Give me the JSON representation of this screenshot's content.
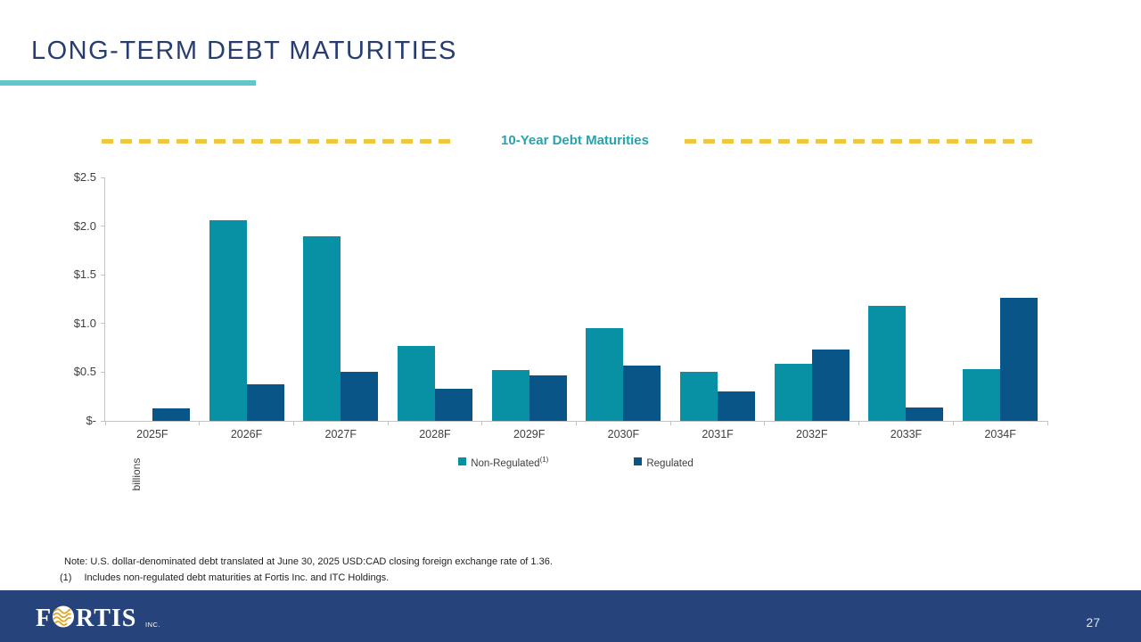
{
  "slide": {
    "title": "LONG-TERM DEBT MATURITIES",
    "page_number": "27"
  },
  "notes": {
    "exchange_rate": "Note: U.S. dollar-denominated debt translated at June 30, 2025 USD:CAD closing foreign exchange rate of 1.36.",
    "footnote_marker": "(1)",
    "footnote_text": "Includes non-regulated debt maturities at Fortis Inc. and ITC Holdings."
  },
  "legend": [
    {
      "label": "Non-Regulated",
      "superscript": "(1)",
      "color": "#0891a5"
    },
    {
      "label": "Regulated",
      "superscript": "",
      "color": "#0a5587"
    }
  ],
  "footer": {
    "logo_text": "FORTIS",
    "logo_suffix": "INC."
  },
  "colors": {
    "accent_teal": "#5fc6cb",
    "dash_gold": "#eec73f",
    "title_navy": "#283d6f",
    "chart_title_teal": "#27a3ad",
    "bar_teal": "#0891a5",
    "bar_navy": "#0a5587",
    "footer_navy": "#26437c"
  },
  "chart_data": {
    "type": "bar",
    "title": "10-Year Debt Maturities",
    "xlabel": "",
    "ylabel": "billions",
    "ylim": [
      0,
      2.5
    ],
    "y_ticks": [
      "$2.5",
      "$2.0",
      "$1.5",
      "$1.0",
      "$0.5",
      "$-"
    ],
    "grid": false,
    "legend_position": "bottom",
    "categories": [
      "2025F",
      "2026F",
      "2027F",
      "2028F",
      "2029F",
      "2030F",
      "2031F",
      "2032F",
      "2033F",
      "2034F"
    ],
    "series": [
      {
        "name": "Non-Regulated",
        "color": "#0891a5",
        "values": [
          0,
          2.06,
          1.9,
          0.77,
          0.52,
          0.95,
          0.5,
          0.59,
          1.18,
          0.53
        ]
      },
      {
        "name": "Regulated",
        "color": "#0a5587",
        "values": [
          0.13,
          0.38,
          0.5,
          0.33,
          0.47,
          0.57,
          0.3,
          0.73,
          0.14,
          1.26
        ]
      }
    ]
  }
}
